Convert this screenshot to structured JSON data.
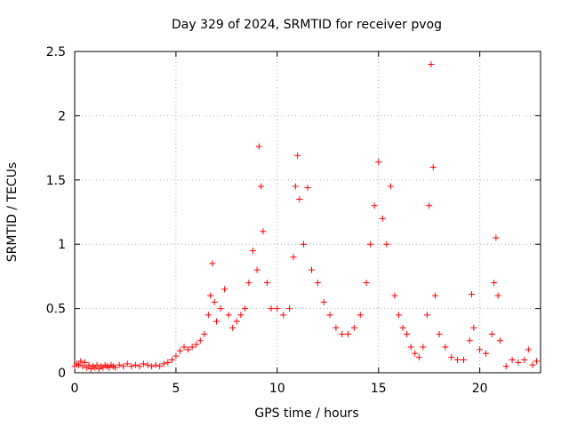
{
  "chart_data": {
    "type": "scatter",
    "title": "Day 329 of 2024, SRMTID for receiver pvog",
    "xlabel": "GPS time / hours",
    "ylabel": "SRMTID / TECUs",
    "xlim": [
      0,
      23
    ],
    "ylim": [
      0,
      2.5
    ],
    "xticks": [
      0,
      5,
      10,
      15,
      20
    ],
    "yticks": [
      0,
      0.5,
      1,
      1.5,
      2,
      2.5
    ],
    "xtick_labels": [
      "0",
      "5",
      "10",
      "15",
      "20"
    ],
    "ytick_labels": [
      "0",
      "0.5",
      "1",
      "1.5",
      "2",
      "2.5"
    ],
    "grid": true,
    "marker": "+",
    "color": "#ff0000",
    "series": [
      {
        "name": "SRMTID",
        "points": [
          [
            0.0,
            0.05
          ],
          [
            0.1,
            0.07
          ],
          [
            0.2,
            0.06
          ],
          [
            0.3,
            0.09
          ],
          [
            0.4,
            0.05
          ],
          [
            0.5,
            0.08
          ],
          [
            0.6,
            0.04
          ],
          [
            0.7,
            0.06
          ],
          [
            0.8,
            0.03
          ],
          [
            0.9,
            0.05
          ],
          [
            1.0,
            0.04
          ],
          [
            1.1,
            0.06
          ],
          [
            1.2,
            0.03
          ],
          [
            1.3,
            0.05
          ],
          [
            1.4,
            0.04
          ],
          [
            1.5,
            0.06
          ],
          [
            1.6,
            0.05
          ],
          [
            1.7,
            0.04
          ],
          [
            1.8,
            0.06
          ],
          [
            1.9,
            0.05
          ],
          [
            2.0,
            0.04
          ],
          [
            2.2,
            0.06
          ],
          [
            2.4,
            0.05
          ],
          [
            2.6,
            0.07
          ],
          [
            2.8,
            0.05
          ],
          [
            3.0,
            0.06
          ],
          [
            3.2,
            0.05
          ],
          [
            3.4,
            0.07
          ],
          [
            3.6,
            0.06
          ],
          [
            3.8,
            0.05
          ],
          [
            4.0,
            0.06
          ],
          [
            4.2,
            0.05
          ],
          [
            4.4,
            0.07
          ],
          [
            4.6,
            0.08
          ],
          [
            4.8,
            0.1
          ],
          [
            5.0,
            0.13
          ],
          [
            5.2,
            0.17
          ],
          [
            5.4,
            0.2
          ],
          [
            5.6,
            0.18
          ],
          [
            5.8,
            0.2
          ],
          [
            6.0,
            0.22
          ],
          [
            6.2,
            0.25
          ],
          [
            6.4,
            0.3
          ],
          [
            6.6,
            0.45
          ],
          [
            6.7,
            0.6
          ],
          [
            6.8,
            0.85
          ],
          [
            6.9,
            0.55
          ],
          [
            7.0,
            0.4
          ],
          [
            7.2,
            0.5
          ],
          [
            7.4,
            0.65
          ],
          [
            7.6,
            0.45
          ],
          [
            7.8,
            0.35
          ],
          [
            8.0,
            0.4
          ],
          [
            8.2,
            0.45
          ],
          [
            8.4,
            0.5
          ],
          [
            8.6,
            0.7
          ],
          [
            8.8,
            0.95
          ],
          [
            9.0,
            0.8
          ],
          [
            9.1,
            1.76
          ],
          [
            9.2,
            1.45
          ],
          [
            9.3,
            1.1
          ],
          [
            9.5,
            0.7
          ],
          [
            9.7,
            0.5
          ],
          [
            10.0,
            0.5
          ],
          [
            10.3,
            0.45
          ],
          [
            10.6,
            0.5
          ],
          [
            10.8,
            0.9
          ],
          [
            10.9,
            1.45
          ],
          [
            11.0,
            1.69
          ],
          [
            11.1,
            1.35
          ],
          [
            11.3,
            1.0
          ],
          [
            11.5,
            1.44
          ],
          [
            11.7,
            0.8
          ],
          [
            12.0,
            0.7
          ],
          [
            12.3,
            0.55
          ],
          [
            12.6,
            0.45
          ],
          [
            12.9,
            0.35
          ],
          [
            13.2,
            0.3
          ],
          [
            13.5,
            0.3
          ],
          [
            13.8,
            0.35
          ],
          [
            14.1,
            0.45
          ],
          [
            14.4,
            0.7
          ],
          [
            14.6,
            1.0
          ],
          [
            14.8,
            1.3
          ],
          [
            15.0,
            1.64
          ],
          [
            15.2,
            1.2
          ],
          [
            15.4,
            1.0
          ],
          [
            15.6,
            1.45
          ],
          [
            15.8,
            0.6
          ],
          [
            16.0,
            0.45
          ],
          [
            16.2,
            0.35
          ],
          [
            16.4,
            0.3
          ],
          [
            16.6,
            0.2
          ],
          [
            16.8,
            0.15
          ],
          [
            17.0,
            0.12
          ],
          [
            17.2,
            0.2
          ],
          [
            17.4,
            0.45
          ],
          [
            17.5,
            1.3
          ],
          [
            17.6,
            2.4
          ],
          [
            17.7,
            1.6
          ],
          [
            17.8,
            0.6
          ],
          [
            18.0,
            0.3
          ],
          [
            18.3,
            0.2
          ],
          [
            18.6,
            0.12
          ],
          [
            18.9,
            0.1
          ],
          [
            19.2,
            0.1
          ],
          [
            19.5,
            0.25
          ],
          [
            19.6,
            0.61
          ],
          [
            19.7,
            0.35
          ],
          [
            20.0,
            0.18
          ],
          [
            20.3,
            0.15
          ],
          [
            20.6,
            0.3
          ],
          [
            20.7,
            0.7
          ],
          [
            20.8,
            1.05
          ],
          [
            20.9,
            0.6
          ],
          [
            21.0,
            0.25
          ],
          [
            21.3,
            0.05
          ],
          [
            21.6,
            0.1
          ],
          [
            21.9,
            0.08
          ],
          [
            22.2,
            0.1
          ],
          [
            22.4,
            0.18
          ],
          [
            22.6,
            0.06
          ],
          [
            22.8,
            0.09
          ]
        ]
      }
    ]
  }
}
